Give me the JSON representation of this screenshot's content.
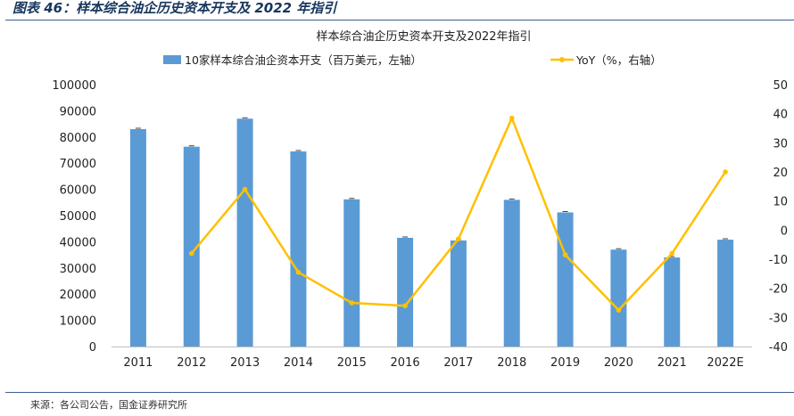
{
  "figure_title": "图表 46：样本综合油企历史资本开支及 2022 年指引",
  "source": "来源：各公司公告，国金证券研究所",
  "chart_data": {
    "type": "bar",
    "title": "样本综合油企历史资本开支及2022年指引",
    "categories": [
      "2011",
      "2012",
      "2013",
      "2014",
      "2015",
      "2016",
      "2017",
      "2018",
      "2019",
      "2020",
      "2021",
      "2022E"
    ],
    "series": [
      {
        "name": "10家样本综合油企资本开支（百万美元，左轴）",
        "type": "bar",
        "axis": "left",
        "color": "#5b9bd5",
        "values": [
          83000,
          76300,
          87000,
          74500,
          56200,
          41500,
          40500,
          56000,
          51200,
          37000,
          34000,
          40800
        ]
      },
      {
        "name": "YoY（%，右轴）",
        "type": "line",
        "axis": "right",
        "color": "#ffc000",
        "values": [
          null,
          -8,
          14,
          -14.5,
          -25,
          -26,
          -3,
          38.5,
          -8.5,
          -27.5,
          -8,
          20
        ]
      }
    ],
    "y_left": {
      "min": 0,
      "max": 100000,
      "step": 10000,
      "ticks": [
        "0",
        "10000",
        "20000",
        "30000",
        "40000",
        "50000",
        "60000",
        "70000",
        "80000",
        "90000",
        "100000"
      ]
    },
    "y_right": {
      "min": -40,
      "max": 50,
      "step": 10,
      "ticks": [
        "-40",
        "-30",
        "-20",
        "-10",
        "0",
        "10",
        "20",
        "30",
        "40",
        "50"
      ]
    },
    "legend_position": "top",
    "grid": false
  }
}
